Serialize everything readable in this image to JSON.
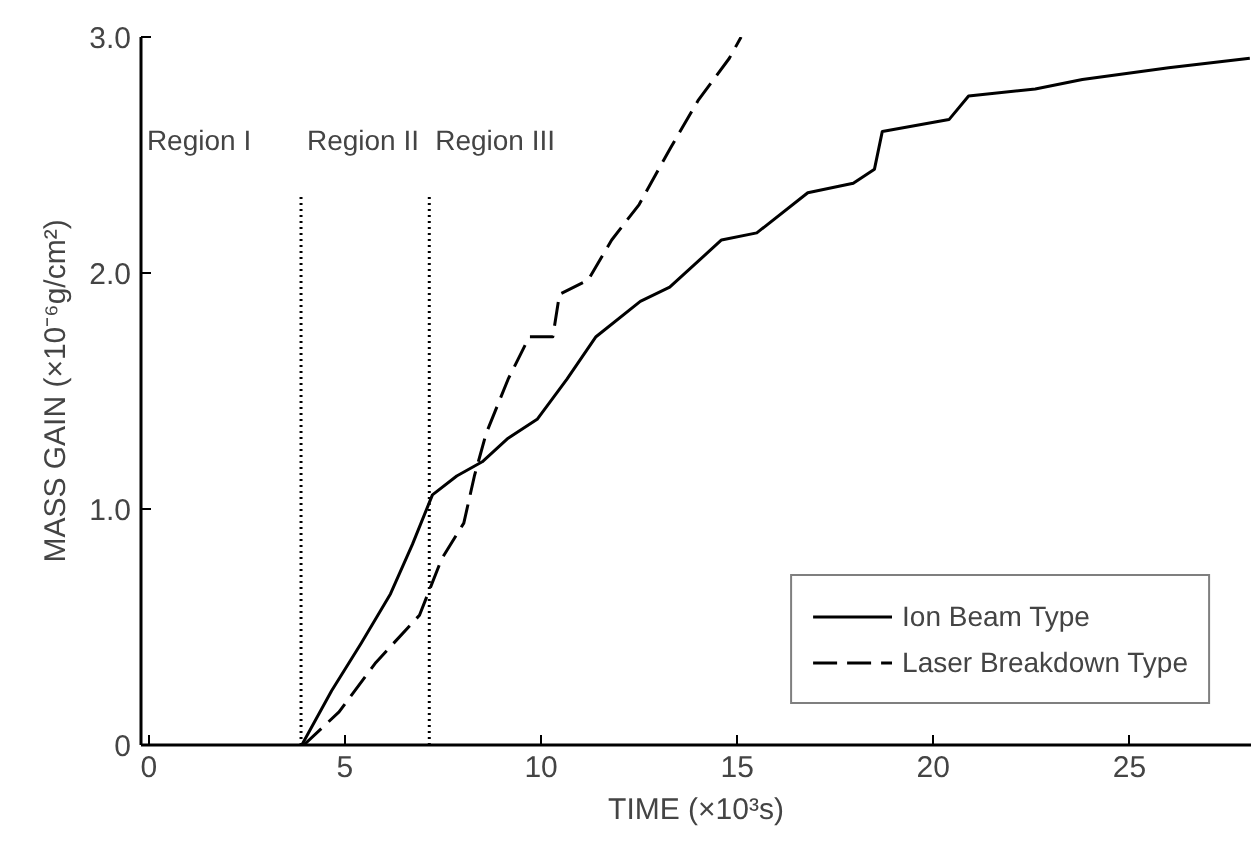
{
  "chart_data": {
    "type": "line",
    "xlabel": "TIME (×10³s)",
    "ylabel": "MASS GAIN (×10⁻⁶g/cm²)",
    "xlim": [
      -0.2,
      28.1
    ],
    "ylim": [
      0,
      3.0
    ],
    "xticks": [
      0,
      5,
      10,
      15,
      20,
      25
    ],
    "yticks": [
      {
        "value": 0,
        "label": "0"
      },
      {
        "value": 1,
        "label": "1.0"
      },
      {
        "value": 2,
        "label": "2.0"
      },
      {
        "value": 3,
        "label": "3.0"
      }
    ],
    "grid": false,
    "legend": "bottom right",
    "marker": "none",
    "series": [
      {
        "name": "Ion Beam Type",
        "color": "#000000",
        "line_style": "solid",
        "x": [
          3.9,
          4.66,
          5.41,
          6.16,
          6.72,
          7.23,
          7.85,
          8.5,
          9.16,
          9.9,
          10.66,
          11.4,
          12.53,
          13.28,
          14.6,
          15.5,
          16.8,
          17.96,
          18.5,
          18.7,
          20.4,
          20.9,
          22.6,
          23.8,
          26.0,
          28.07
        ],
        "values": [
          0,
          0.23,
          0.43,
          0.64,
          0.85,
          1.06,
          1.14,
          1.2,
          1.3,
          1.38,
          1.55,
          1.73,
          1.88,
          1.94,
          2.14,
          2.17,
          2.34,
          2.38,
          2.44,
          2.6,
          2.65,
          2.75,
          2.78,
          2.82,
          2.87,
          2.91
        ]
      },
      {
        "name": "Laser Breakdown Type",
        "color": "#000000",
        "line_style": "dashed",
        "x": [
          3.95,
          4.85,
          5.79,
          6.9,
          7.47,
          8.03,
          8.3,
          8.6,
          9.16,
          9.7,
          10.3,
          10.47,
          11.2,
          11.8,
          12.5,
          13.3,
          14.0,
          14.8,
          15.1
        ],
        "values": [
          0,
          0.14,
          0.35,
          0.55,
          0.79,
          0.94,
          1.14,
          1.32,
          1.55,
          1.73,
          1.73,
          1.91,
          1.97,
          2.14,
          2.29,
          2.53,
          2.73,
          2.91,
          3.0
        ]
      }
    ],
    "ref_lines": [
      {
        "axis": "x",
        "value": 3.88,
        "line_style": "dotted",
        "color": "#000000"
      },
      {
        "axis": "x",
        "value": 7.15,
        "line_style": "dotted",
        "color": "#000000"
      }
    ],
    "annotations": [
      "Region I",
      "Region II",
      "Region III"
    ]
  }
}
